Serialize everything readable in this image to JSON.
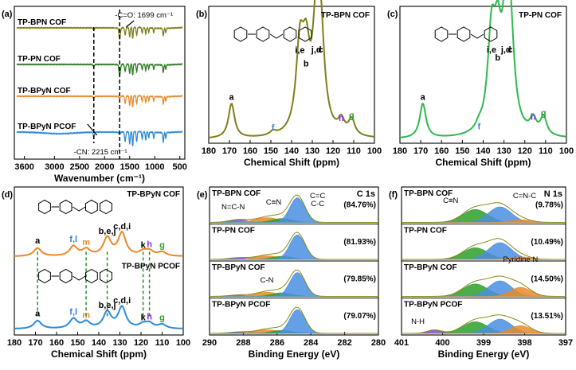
{
  "chart_data": [
    {
      "id": "a",
      "type": "line",
      "panel_label": "(a)",
      "xlabel": "Wavenumber (cm⁻¹)",
      "xlim": [
        3800,
        400
      ],
      "x_ticks": [
        3600,
        3000,
        2500,
        2000,
        1500,
        1000,
        500
      ],
      "annotations": [
        "-C=O: 1699 cm⁻¹",
        "-CN: 2215 cm⁻¹"
      ],
      "series": [
        {
          "name": "TP-BPN COF",
          "color": "#7f7f1a"
        },
        {
          "name": "TP-PN COF",
          "color": "#2c7d21"
        },
        {
          "name": "TP-BPyN COF",
          "color": "#e8892a"
        },
        {
          "name": "TP-BPyN PCOF",
          "color": "#2a8bd8"
        }
      ]
    },
    {
      "id": "b",
      "type": "line",
      "panel_label": "(b)",
      "title": "TP-BPN COF",
      "xlabel": "Chemical Shift (ppm)",
      "xlim": [
        180,
        100
      ],
      "x_ticks": [
        180,
        170,
        160,
        150,
        140,
        130,
        120,
        110,
        100
      ],
      "color": "#7f7f1a",
      "peaks": [
        {
          "label": "a",
          "x": 169,
          "y": 0.28
        },
        {
          "label": "f",
          "x": 149,
          "y": 0.03
        },
        {
          "label": "i,e",
          "x": 136,
          "y": 0.66
        },
        {
          "label": "b",
          "x": 133,
          "y": 0.55
        },
        {
          "label": "j,d",
          "x": 128,
          "y": 0.78
        },
        {
          "label": "c",
          "x": 126,
          "y": 0.7
        },
        {
          "label": "h",
          "x": 116,
          "y": 0.11
        },
        {
          "label": "g",
          "x": 111,
          "y": 0.13
        }
      ]
    },
    {
      "id": "c",
      "type": "line",
      "panel_label": "(c)",
      "title": "TP-PN COF",
      "xlabel": "Chemical Shift (ppm)",
      "xlim": [
        180,
        100
      ],
      "x_ticks": [
        180,
        170,
        160,
        150,
        140,
        130,
        120,
        110,
        100
      ],
      "color": "#2db84e",
      "peaks": [
        {
          "label": "a",
          "x": 169,
          "y": 0.28
        },
        {
          "label": "f",
          "x": 142,
          "y": 0.04
        },
        {
          "label": "i,e",
          "x": 136,
          "y": 0.74
        },
        {
          "label": "b",
          "x": 133,
          "y": 0.6
        },
        {
          "label": "j,d",
          "x": 129,
          "y": 0.78
        },
        {
          "label": "c",
          "x": 127,
          "y": 0.7
        },
        {
          "label": "h",
          "x": 116,
          "y": 0.12
        },
        {
          "label": "g",
          "x": 111,
          "y": 0.15
        }
      ]
    },
    {
      "id": "d",
      "type": "line",
      "panel_label": "(d)",
      "xlabel": "Chemical Shift (ppm)",
      "xlim": [
        180,
        100
      ],
      "x_ticks": [
        180,
        170,
        160,
        150,
        140,
        130,
        120,
        110,
        100
      ],
      "series": [
        {
          "name": "TP-BPyN COF",
          "color": "#e8892a",
          "peaks": [
            "a",
            "f,l",
            "m",
            "b,e,j",
            "c,d,i",
            "k",
            "h",
            "g"
          ]
        },
        {
          "name": "TP-BPyN PCOF",
          "color": "#2a8bd8",
          "peaks": [
            "a",
            "f,l",
            "m",
            "b,e,j",
            "c,d,i",
            "k",
            "h",
            "g"
          ]
        }
      ]
    },
    {
      "id": "e",
      "type": "line",
      "panel_label": "(e)",
      "element": "C 1s",
      "xlabel": "Binding Energy (eV)",
      "xlim": [
        290,
        280
      ],
      "x_ticks": [
        290,
        288,
        286,
        284,
        282,
        280
      ],
      "component_labels": [
        "N=C-N",
        "C≡N",
        "C=C",
        "C-C",
        "C-N"
      ],
      "series": [
        {
          "name": "TP-BPN COF",
          "percent": "(84.76%)"
        },
        {
          "name": "TP-PN COF",
          "percent": "(81.93%)"
        },
        {
          "name": "TP-BPyN COF",
          "percent": "(79.85%)"
        },
        {
          "name": "TP-BPyN PCOF",
          "percent": "(79.07%)"
        }
      ]
    },
    {
      "id": "f",
      "type": "line",
      "panel_label": "(f)",
      "element": "N 1s",
      "xlabel": "Binding Energy (eV)",
      "xlim": [
        401,
        397
      ],
      "x_ticks": [
        401,
        400,
        399,
        398,
        397
      ],
      "component_labels": [
        "C≡N",
        "C=N-C",
        "Pyridine N",
        "N-H"
      ],
      "series": [
        {
          "name": "TP-BPN COF",
          "percent": "(9.78%)"
        },
        {
          "name": "TP-PN COF",
          "percent": "(10.49%)"
        },
        {
          "name": "TP-BPyN COF",
          "percent": "(14.50%)"
        },
        {
          "name": "TP-BPyN PCOF",
          "percent": "(13.51%)"
        }
      ]
    }
  ]
}
